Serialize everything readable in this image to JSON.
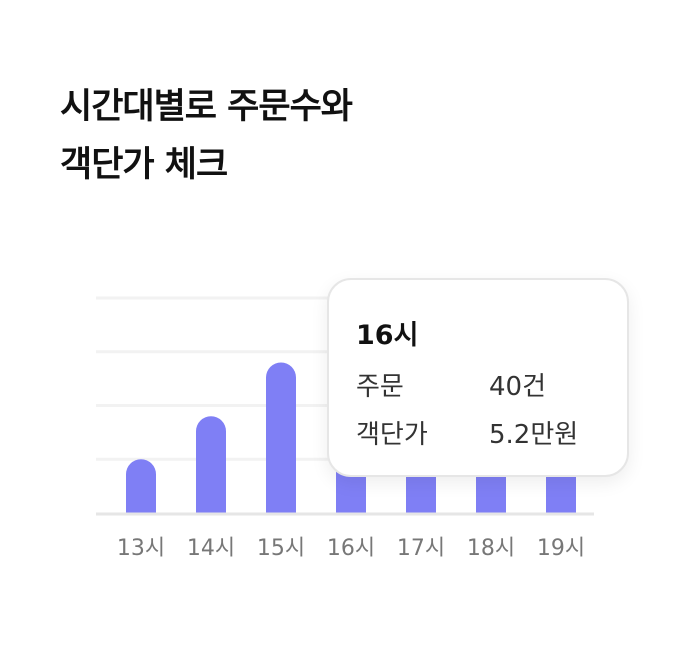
{
  "title": {
    "line1": "시간대별로 주문수와",
    "line2": "객단가 체크"
  },
  "chart_data": {
    "type": "bar",
    "categories": [
      "13시",
      "14시",
      "15시",
      "16시",
      "17시",
      "18시",
      "19시"
    ],
    "values": [
      1.0,
      1.8,
      2.8,
      3.4,
      3.1,
      3.3,
      3.7
    ],
    "ylim": [
      0,
      4
    ],
    "grid": true,
    "bar_color": "#7f7ff5",
    "tooltip": {
      "title": "16시",
      "rows": [
        {
          "label": "주문",
          "value": "40건"
        },
        {
          "label": "객단가",
          "value": "5.2만원"
        }
      ]
    }
  }
}
